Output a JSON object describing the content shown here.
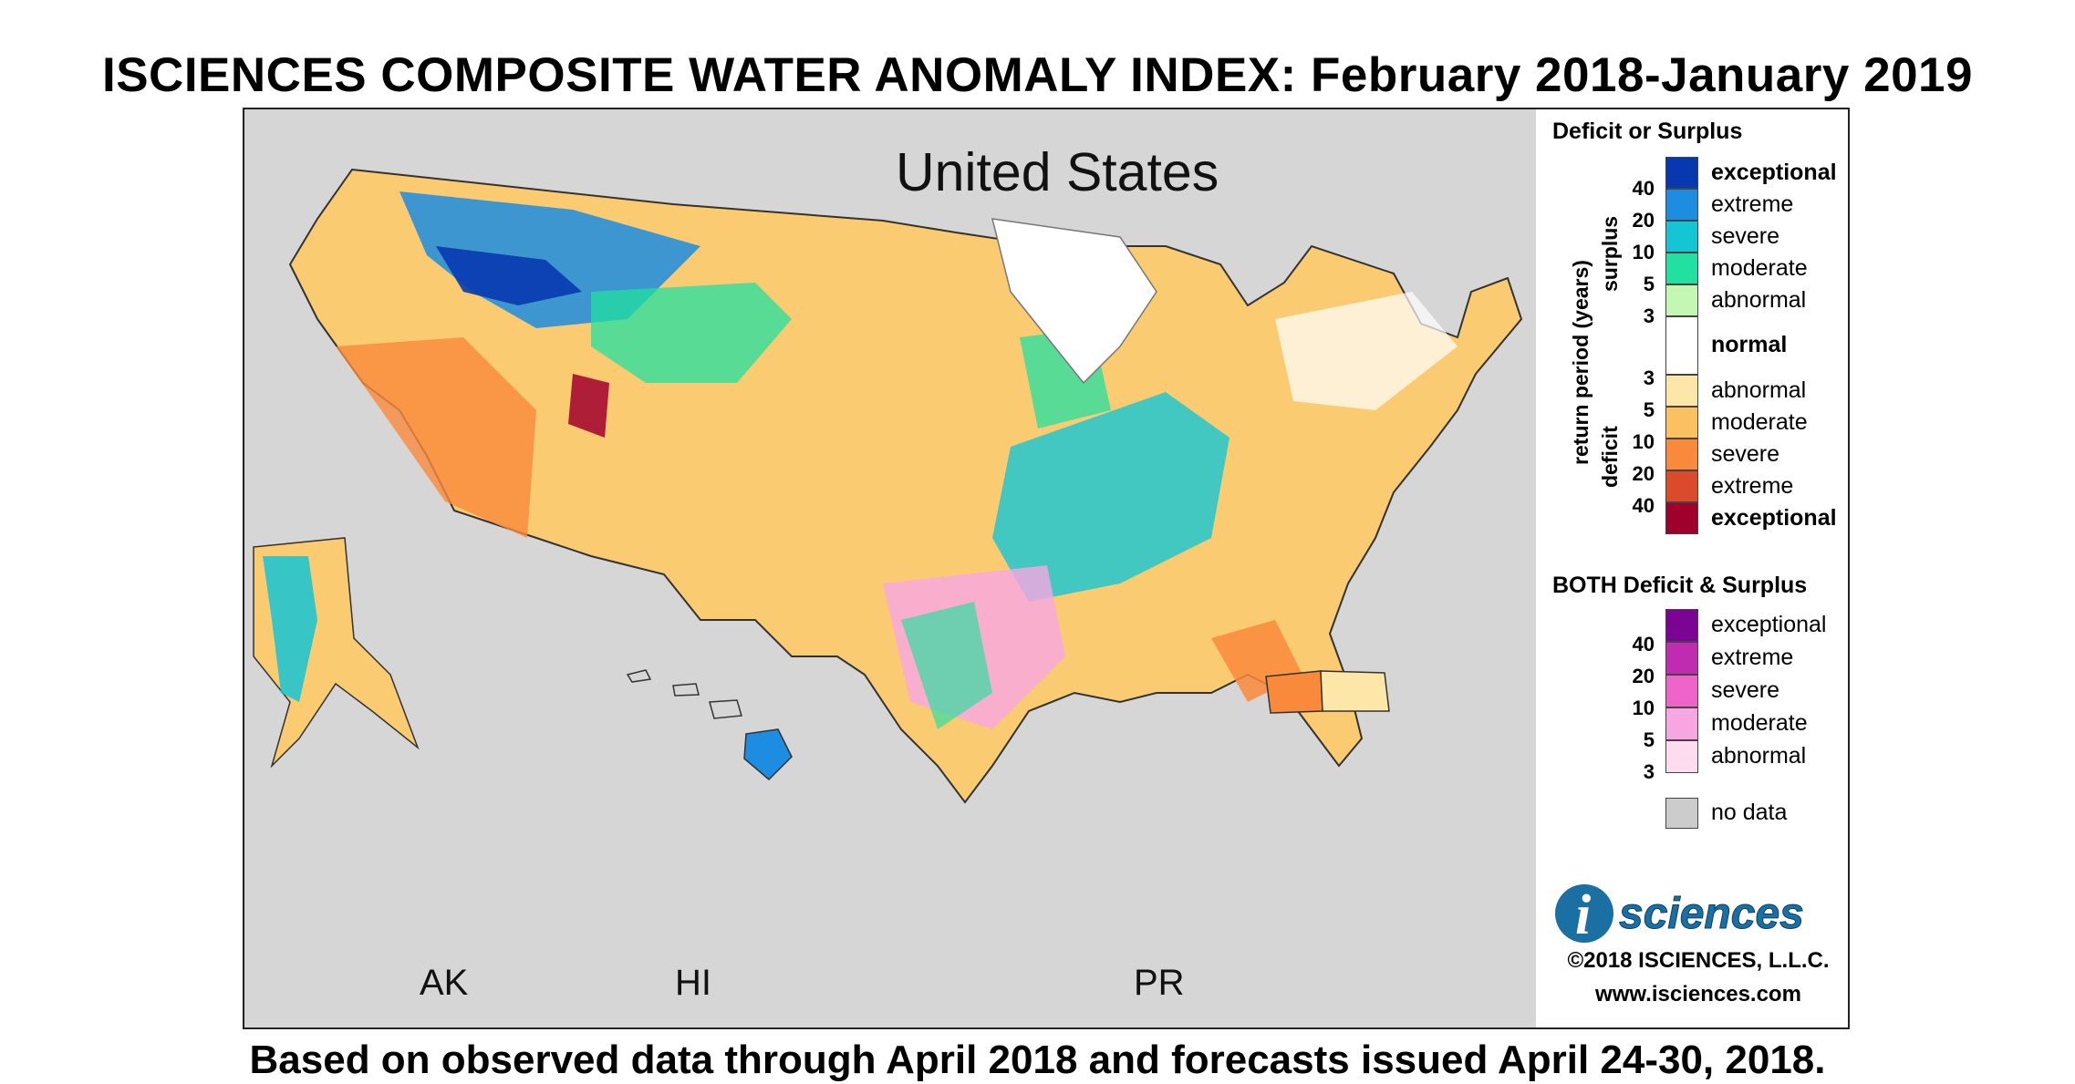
{
  "title": "ISCIENCES COMPOSITE WATER ANOMALY INDEX: February 2018-January 2019",
  "footer": "Based on observed data through April 2018 and forecasts issued April 24-30, 2018.",
  "map": {
    "region_label": "United States",
    "inset_labels": {
      "ak": "AK",
      "hi": "HI",
      "pr": "PR"
    }
  },
  "legend": {
    "deficit_surplus": {
      "header": "Deficit or Surplus",
      "axis_label": "return period (years)",
      "surplus_label": "surplus",
      "deficit_label": "deficit",
      "surplus_ticks": [
        "40",
        "20",
        "10",
        "5",
        "3"
      ],
      "deficit_ticks": [
        "3",
        "5",
        "10",
        "20",
        "40"
      ],
      "surplus_items": [
        {
          "label": "exceptional",
          "color": "#0838b0"
        },
        {
          "label": "extreme",
          "color": "#1c8de0"
        },
        {
          "label": "severe",
          "color": "#14c6d4"
        },
        {
          "label": "moderate",
          "color": "#22e0a0"
        },
        {
          "label": "abnormal",
          "color": "#c4f6b4"
        }
      ],
      "normal": {
        "label": "normal",
        "color": "#ffffff"
      },
      "deficit_items": [
        {
          "label": "abnormal",
          "color": "#fde7a8"
        },
        {
          "label": "moderate",
          "color": "#fbc160"
        },
        {
          "label": "severe",
          "color": "#f98a3c"
        },
        {
          "label": "extreme",
          "color": "#dc4a2c"
        },
        {
          "label": "exceptional",
          "color": "#a0002c"
        }
      ]
    },
    "both": {
      "header": "BOTH Deficit & Surplus",
      "ticks": [
        "40",
        "20",
        "10",
        "5",
        "3"
      ],
      "items": [
        {
          "label": "exceptional",
          "color": "#7c0494"
        },
        {
          "label": "extreme",
          "color": "#c02cb0"
        },
        {
          "label": "severe",
          "color": "#ee64c8"
        },
        {
          "label": "moderate",
          "color": "#f8a6e2"
        },
        {
          "label": "abnormal",
          "color": "#fcdcee"
        }
      ]
    },
    "no_data": {
      "label": "no data",
      "color": "#cccccc"
    }
  },
  "branding": {
    "logo_letter": "i",
    "logo_text": "sciences",
    "copyright": "©2018 ISCIENCES, L.L.C.",
    "website": "www.isciences.com"
  }
}
